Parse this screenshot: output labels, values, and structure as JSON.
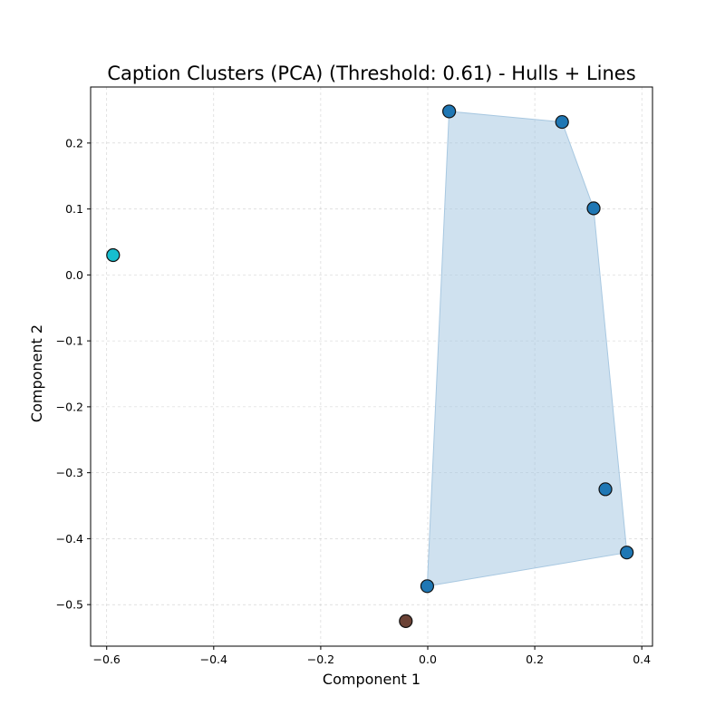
{
  "chart_data": {
    "type": "scatter",
    "title": "Caption Clusters (PCA) (Threshold: 0.61) - Hulls + Lines",
    "xlabel": "Component 1",
    "ylabel": "Component 2",
    "xlim": [
      -0.63,
      0.42
    ],
    "ylim": [
      -0.563,
      0.285
    ],
    "x_ticks": [
      -0.6,
      -0.4,
      -0.2,
      0.0,
      0.2,
      0.4
    ],
    "x_tick_labels": [
      "−0.6",
      "−0.4",
      "−0.2",
      "0.0",
      "0.2",
      "0.4"
    ],
    "y_ticks": [
      0.2,
      0.1,
      0.0,
      -0.1,
      -0.2,
      -0.3,
      -0.4,
      -0.5
    ],
    "y_tick_labels": [
      "0.2",
      "0.1",
      "0.0",
      "−0.1",
      "−0.2",
      "−0.3",
      "−0.4",
      "−0.5"
    ],
    "grid": true,
    "series": [
      {
        "color": "#1f77b4",
        "hull_color": "#a8c8e1",
        "points": [
          {
            "x": 0.04,
            "y": 0.248
          },
          {
            "x": 0.251,
            "y": 0.232
          },
          {
            "x": 0.31,
            "y": 0.101
          },
          {
            "x": 0.332,
            "y": -0.325
          },
          {
            "x": 0.372,
            "y": -0.421
          },
          {
            "x": -0.001,
            "y": -0.472
          }
        ],
        "hull": [
          {
            "x": 0.04,
            "y": 0.248
          },
          {
            "x": 0.251,
            "y": 0.232
          },
          {
            "x": 0.31,
            "y": 0.101
          },
          {
            "x": 0.372,
            "y": -0.421
          },
          {
            "x": -0.001,
            "y": -0.472
          }
        ]
      },
      {
        "color": "#17becf",
        "points": [
          {
            "x": -0.588,
            "y": 0.03
          }
        ]
      },
      {
        "color": "#6b4235",
        "points": [
          {
            "x": -0.041,
            "y": -0.525
          }
        ]
      }
    ]
  }
}
